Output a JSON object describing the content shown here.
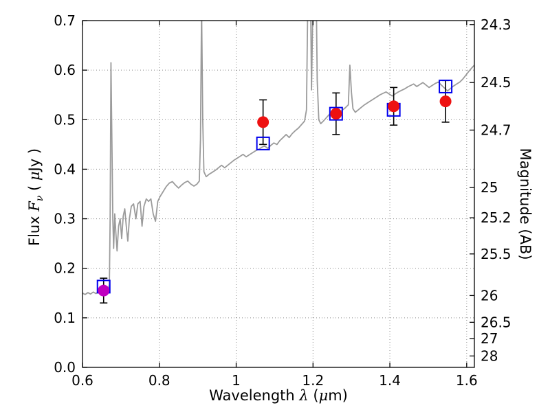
{
  "figure": {
    "background": "#ffffff",
    "axes_titles": {
      "x": {
        "prefix": "Wavelength ",
        "lambda": "λ",
        "open": " (",
        "mu": "μ",
        "close": "m)"
      },
      "y_left": {
        "prefix": "Flux ",
        "symbol": "F",
        "sub": "ν",
        "open": " ( ",
        "mu": "μ",
        "close": "Jy )"
      },
      "y_right": "Magnitude (AB)"
    }
  },
  "chart_data": {
    "type": "line",
    "title": "",
    "xlabel": "Wavelength λ (μm)",
    "ylabel": "Flux Fν (μJy)",
    "ylabel_right": "Magnitude (AB)",
    "xlim": [
      0.6,
      1.62
    ],
    "ylim": [
      0.0,
      0.7
    ],
    "grid": true,
    "grid_style": "dotted",
    "grid_color": "#888888",
    "x_ticks": {
      "values": [
        0.6,
        0.8,
        1.0,
        1.2,
        1.4,
        1.6
      ],
      "labels": [
        "0.6",
        "0.8",
        "1",
        "1.2",
        "1.4",
        "1.6"
      ]
    },
    "y_ticks_left": {
      "values": [
        0.0,
        0.1,
        0.2,
        0.3,
        0.4,
        0.5,
        0.6,
        0.7
      ],
      "labels": [
        "0.0",
        "0.1",
        "0.2",
        "0.3",
        "0.4",
        "0.5",
        "0.6",
        "0.7"
      ]
    },
    "y_ticks_right": {
      "labels": [
        "24.3",
        "24.5",
        "24.7",
        "25",
        "25.2",
        "25.5",
        "26",
        "26.5",
        "27",
        "28"
      ],
      "flux_values": [
        0.692,
        0.575,
        0.479,
        0.363,
        0.302,
        0.229,
        0.145,
        0.091,
        0.058,
        0.023
      ]
    },
    "series": [
      {
        "name": "model-spectrum",
        "type": "line",
        "color": "#9b9b9b",
        "width": 1.8,
        "points": [
          [
            0.6,
            0.15
          ],
          [
            0.607,
            0.147
          ],
          [
            0.614,
            0.151
          ],
          [
            0.621,
            0.148
          ],
          [
            0.628,
            0.152
          ],
          [
            0.635,
            0.149
          ],
          [
            0.642,
            0.153
          ],
          [
            0.649,
            0.15
          ],
          [
            0.656,
            0.151
          ],
          [
            0.662,
            0.153
          ],
          [
            0.667,
            0.157
          ],
          [
            0.67,
            0.168
          ],
          [
            0.672,
            0.3
          ],
          [
            0.674,
            0.615
          ],
          [
            0.677,
            0.43
          ],
          [
            0.679,
            0.3
          ],
          [
            0.681,
            0.24
          ],
          [
            0.684,
            0.31
          ],
          [
            0.687,
            0.27
          ],
          [
            0.69,
            0.235
          ],
          [
            0.694,
            0.285
          ],
          [
            0.698,
            0.3
          ],
          [
            0.702,
            0.26
          ],
          [
            0.706,
            0.305
          ],
          [
            0.71,
            0.32
          ],
          [
            0.714,
            0.285
          ],
          [
            0.718,
            0.255
          ],
          [
            0.722,
            0.3
          ],
          [
            0.727,
            0.325
          ],
          [
            0.733,
            0.33
          ],
          [
            0.739,
            0.3
          ],
          [
            0.744,
            0.33
          ],
          [
            0.75,
            0.335
          ],
          [
            0.755,
            0.285
          ],
          [
            0.76,
            0.325
          ],
          [
            0.766,
            0.34
          ],
          [
            0.772,
            0.335
          ],
          [
            0.778,
            0.34
          ],
          [
            0.784,
            0.31
          ],
          [
            0.79,
            0.295
          ],
          [
            0.796,
            0.335
          ],
          [
            0.802,
            0.345
          ],
          [
            0.81,
            0.355
          ],
          [
            0.818,
            0.365
          ],
          [
            0.826,
            0.372
          ],
          [
            0.834,
            0.375
          ],
          [
            0.842,
            0.368
          ],
          [
            0.85,
            0.362
          ],
          [
            0.858,
            0.368
          ],
          [
            0.866,
            0.373
          ],
          [
            0.874,
            0.376
          ],
          [
            0.882,
            0.37
          ],
          [
            0.89,
            0.366
          ],
          [
            0.898,
            0.37
          ],
          [
            0.904,
            0.376
          ],
          [
            0.907,
            0.46
          ],
          [
            0.91,
            0.73
          ],
          [
            0.913,
            0.5
          ],
          [
            0.916,
            0.395
          ],
          [
            0.922,
            0.385
          ],
          [
            0.93,
            0.39
          ],
          [
            0.938,
            0.394
          ],
          [
            0.946,
            0.398
          ],
          [
            0.954,
            0.403
          ],
          [
            0.962,
            0.408
          ],
          [
            0.97,
            0.403
          ],
          [
            0.978,
            0.408
          ],
          [
            0.986,
            0.413
          ],
          [
            0.994,
            0.418
          ],
          [
            1.002,
            0.422
          ],
          [
            1.01,
            0.426
          ],
          [
            1.018,
            0.43
          ],
          [
            1.026,
            0.425
          ],
          [
            1.034,
            0.429
          ],
          [
            1.042,
            0.433
          ],
          [
            1.05,
            0.437
          ],
          [
            1.058,
            0.44
          ],
          [
            1.066,
            0.444
          ],
          [
            1.074,
            0.447
          ],
          [
            1.082,
            0.442
          ],
          [
            1.09,
            0.448
          ],
          [
            1.098,
            0.453
          ],
          [
            1.106,
            0.45
          ],
          [
            1.114,
            0.458
          ],
          [
            1.122,
            0.464
          ],
          [
            1.13,
            0.47
          ],
          [
            1.138,
            0.464
          ],
          [
            1.146,
            0.472
          ],
          [
            1.154,
            0.478
          ],
          [
            1.162,
            0.483
          ],
          [
            1.17,
            0.49
          ],
          [
            1.178,
            0.497
          ],
          [
            1.183,
            0.52
          ],
          [
            1.186,
            0.72
          ],
          [
            1.189,
            1.0
          ],
          [
            1.193,
            0.8
          ],
          [
            1.196,
            0.56
          ],
          [
            1.199,
            0.7
          ],
          [
            1.203,
            1.0
          ],
          [
            1.207,
            0.85
          ],
          [
            1.211,
            0.58
          ],
          [
            1.215,
            0.5
          ],
          [
            1.22,
            0.492
          ],
          [
            1.228,
            0.498
          ],
          [
            1.236,
            0.505
          ],
          [
            1.244,
            0.512
          ],
          [
            1.252,
            0.516
          ],
          [
            1.26,
            0.52
          ],
          [
            1.268,
            0.515
          ],
          [
            1.276,
            0.519
          ],
          [
            1.284,
            0.524
          ],
          [
            1.292,
            0.53
          ],
          [
            1.296,
            0.61
          ],
          [
            1.3,
            0.555
          ],
          [
            1.304,
            0.522
          ],
          [
            1.31,
            0.515
          ],
          [
            1.318,
            0.52
          ],
          [
            1.326,
            0.525
          ],
          [
            1.334,
            0.53
          ],
          [
            1.342,
            0.534
          ],
          [
            1.35,
            0.538
          ],
          [
            1.358,
            0.542
          ],
          [
            1.366,
            0.546
          ],
          [
            1.374,
            0.55
          ],
          [
            1.382,
            0.553
          ],
          [
            1.39,
            0.556
          ],
          [
            1.398,
            0.552
          ],
          [
            1.406,
            0.548
          ],
          [
            1.414,
            0.552
          ],
          [
            1.422,
            0.556
          ],
          [
            1.43,
            0.559
          ],
          [
            1.438,
            0.562
          ],
          [
            1.446,
            0.566
          ],
          [
            1.454,
            0.569
          ],
          [
            1.462,
            0.572
          ],
          [
            1.47,
            0.567
          ],
          [
            1.478,
            0.571
          ],
          [
            1.486,
            0.575
          ],
          [
            1.494,
            0.57
          ],
          [
            1.502,
            0.565
          ],
          [
            1.51,
            0.569
          ],
          [
            1.518,
            0.573
          ],
          [
            1.526,
            0.576
          ],
          [
            1.534,
            0.57
          ],
          [
            1.542,
            0.564
          ],
          [
            1.55,
            0.558
          ],
          [
            1.558,
            0.563
          ],
          [
            1.566,
            0.568
          ],
          [
            1.574,
            0.572
          ],
          [
            1.582,
            0.576
          ],
          [
            1.59,
            0.582
          ],
          [
            1.598,
            0.59
          ],
          [
            1.606,
            0.598
          ],
          [
            1.614,
            0.605
          ],
          [
            1.62,
            0.61
          ]
        ]
      },
      {
        "name": "observed-photometry",
        "type": "scatter",
        "marker": "circle",
        "color": "#ee1111",
        "marker_radius": 8.5,
        "error_color": "#000000",
        "points": [
          {
            "x": 1.07,
            "y": 0.495,
            "yerr": 0.045
          },
          {
            "x": 1.26,
            "y": 0.512,
            "yerr": 0.042
          },
          {
            "x": 1.41,
            "y": 0.527,
            "yerr": 0.038
          },
          {
            "x": 1.545,
            "y": 0.537,
            "yerr": 0.042
          }
        ]
      },
      {
        "name": "detection-short-wavelength",
        "type": "scatter",
        "marker": "circle",
        "color": "#c000c0",
        "marker_radius": 8.5,
        "error_color": "#000000",
        "points": [
          {
            "x": 0.655,
            "y": 0.155,
            "yerr": 0.025
          }
        ]
      },
      {
        "name": "model-photometry",
        "type": "scatter",
        "marker": "open-square",
        "color": "#0000ee",
        "marker_size": 18,
        "stroke_width": 2,
        "points": [
          {
            "x": 0.655,
            "y": 0.163
          },
          {
            "x": 1.07,
            "y": 0.452
          },
          {
            "x": 1.26,
            "y": 0.512
          },
          {
            "x": 1.41,
            "y": 0.52
          },
          {
            "x": 1.545,
            "y": 0.567
          }
        ]
      }
    ]
  }
}
